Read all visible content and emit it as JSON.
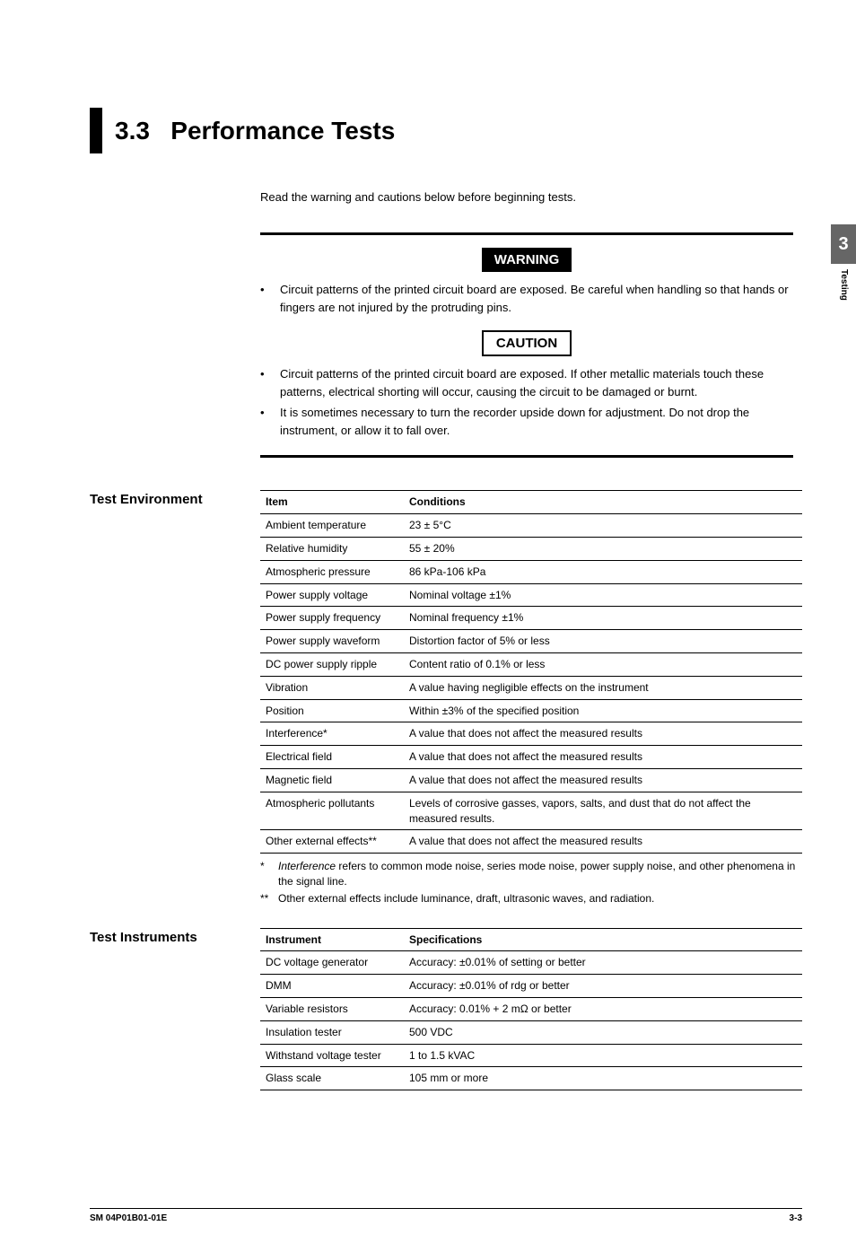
{
  "sidebar": {
    "chapter_num": "3",
    "chapter_label": "Testing"
  },
  "heading": {
    "number": "3.3",
    "title": "Performance Tests"
  },
  "intro": "Read the warning and cautions below before beginning tests.",
  "warning": {
    "label": "WARNING",
    "items": [
      "Circuit patterns of the printed circuit board are exposed.  Be careful when handling so that hands or fingers are not injured by the protruding pins."
    ]
  },
  "caution": {
    "label": "CAUTION",
    "items": [
      "Circuit patterns of the printed circuit board are exposed.  If other metallic materials touch these patterns, electrical shorting will occur, causing the circuit to be damaged or burnt.",
      "It is sometimes necessary to turn the recorder upside down for adjustment.  Do not drop the instrument, or allow it to fall over."
    ]
  },
  "test_env": {
    "title": "Test Environment",
    "col1": "Item",
    "col2": "Conditions",
    "rows": [
      {
        "item": "Ambient temperature",
        "cond": "23 ± 5°C"
      },
      {
        "item": "Relative humidity",
        "cond": "55 ± 20%"
      },
      {
        "item": "Atmospheric pressure",
        "cond": "86 kPa-106 kPa"
      },
      {
        "item": "Power supply voltage",
        "cond": "Nominal voltage ±1%"
      },
      {
        "item": "Power supply frequency",
        "cond": "Nominal frequency ±1%"
      },
      {
        "item": "Power supply waveform",
        "cond": "Distortion factor of 5% or less"
      },
      {
        "item": "DC power supply ripple",
        "cond": "Content ratio of 0.1% or less"
      },
      {
        "item": "Vibration",
        "cond": "A value having negligible effects on the instrument"
      },
      {
        "item": "Position",
        "cond": "Within ±3% of the specified position"
      },
      {
        "item": "Interference*",
        "cond": "   A value that does not affect the measured results"
      },
      {
        "item": "Electrical field",
        "cond": "A value that does not affect the measured results"
      },
      {
        "item": "Magnetic field",
        "cond": "A value that does not affect the measured results"
      },
      {
        "item": "Atmospheric pollutants",
        "cond": "Levels of corrosive gasses, vapors, salts, and dust that do not affect the measured results."
      },
      {
        "item": "Other external effects**",
        "cond": "A value that does not affect the measured results"
      }
    ],
    "footnotes": [
      {
        "mark": "*",
        "italic": "Interference",
        "rest": " refers to common mode noise, series mode noise, power supply noise, and other phenomena in the signal line."
      },
      {
        "mark": "**",
        "italic": "",
        "rest": "Other external effects include luminance, draft, ultrasonic waves, and radiation."
      }
    ]
  },
  "test_inst": {
    "title": "Test Instruments",
    "col1": "Instrument",
    "col2": "Specifications",
    "rows": [
      {
        "item": "DC voltage generator",
        "cond": "Accuracy: ±0.01% of setting or better"
      },
      {
        "item": "DMM",
        "cond": "Accuracy: ±0.01% of rdg or better"
      },
      {
        "item": "Variable resistors",
        "cond": "Accuracy: 0.01% + 2 mΩ or better"
      },
      {
        "item": "Insulation tester",
        "cond": "500 VDC"
      },
      {
        "item": "Withstand voltage tester",
        "cond": "1 to 1.5 kVAC"
      },
      {
        "item": "Glass scale",
        "cond": "105 mm or more"
      }
    ]
  },
  "footer": {
    "left": "SM 04P01B01-01E",
    "right": "3-3"
  }
}
